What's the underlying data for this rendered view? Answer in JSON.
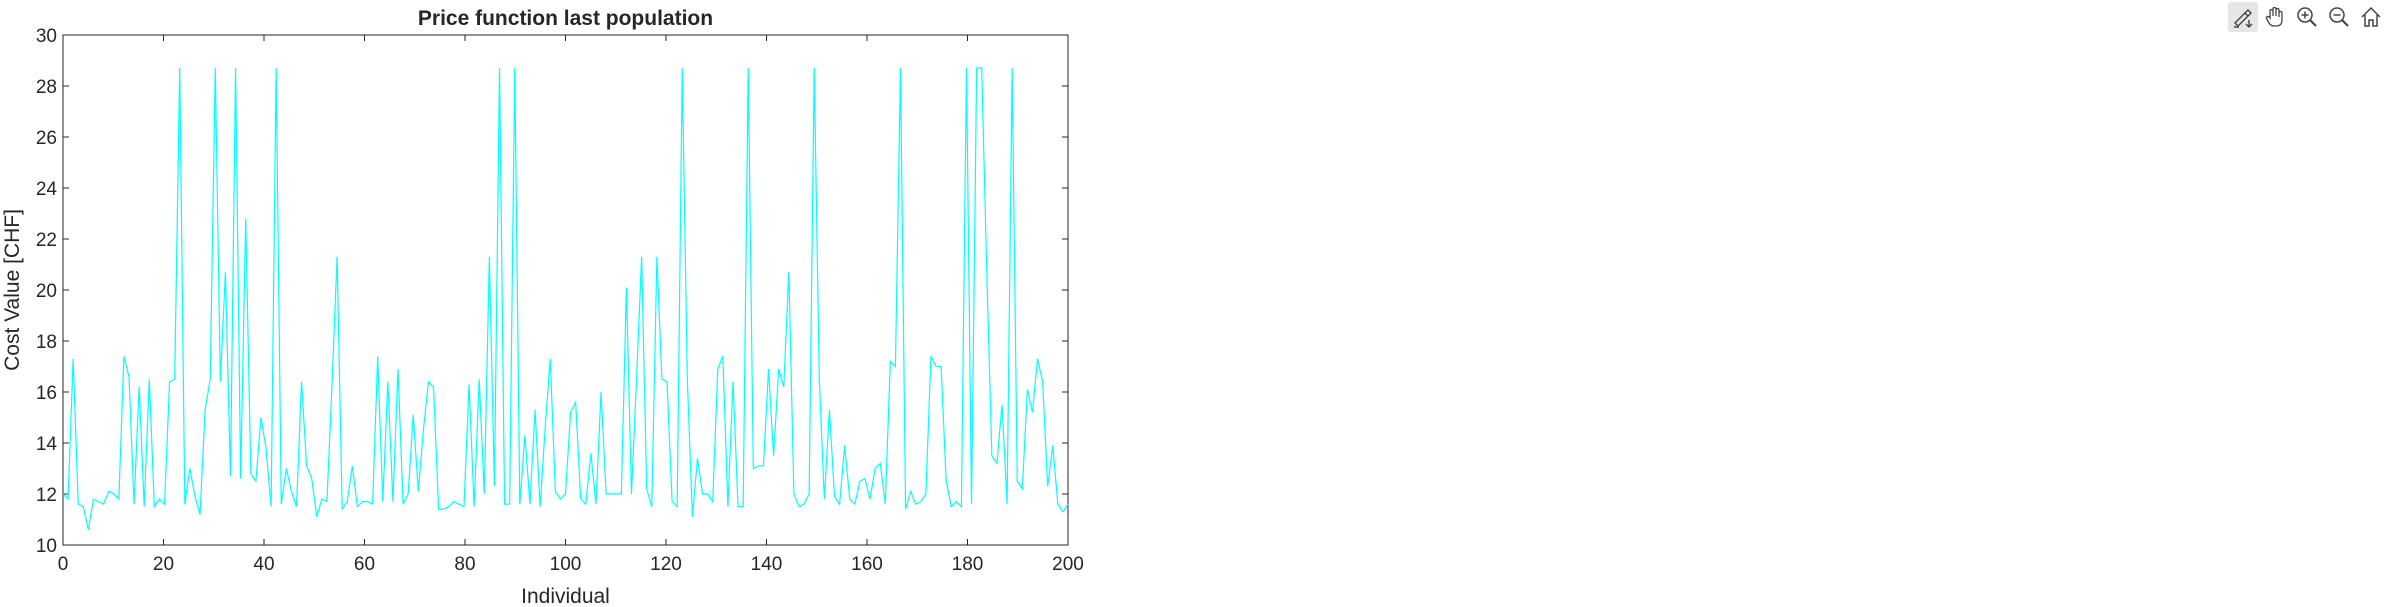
{
  "toolbar": {
    "buttons": [
      {
        "icon": "brush-export-icon",
        "name": "export-button"
      },
      {
        "icon": "pan-hand-icon",
        "name": "pan-button"
      },
      {
        "icon": "zoom-in-icon",
        "name": "zoom-in-button"
      },
      {
        "icon": "zoom-out-icon",
        "name": "zoom-out-button"
      },
      {
        "icon": "home-icon",
        "name": "restore-view-button"
      }
    ]
  },
  "chart_data": {
    "type": "line",
    "title": "Price function last population",
    "xlabel": "Individual",
    "ylabel": "Cost Value [CHF]",
    "xlim": [
      0,
      200
    ],
    "ylim": [
      10,
      30
    ],
    "xticks": [
      0,
      20,
      40,
      60,
      80,
      100,
      120,
      140,
      160,
      180,
      200
    ],
    "yticks": [
      10,
      12,
      14,
      16,
      18,
      20,
      22,
      24,
      26,
      28,
      30
    ],
    "grid": false,
    "color": "#00FFFF",
    "series": [
      {
        "values": [
          12.0,
          11.8,
          17.3,
          11.6,
          11.5,
          10.6,
          11.8,
          11.7,
          11.6,
          12.1,
          12.0,
          11.8,
          17.4,
          16.6,
          11.6,
          16.2,
          11.5,
          16.5,
          11.5,
          11.8,
          11.6,
          16.4,
          16.5,
          28.7,
          11.6,
          13.0,
          11.9,
          11.2,
          15.3,
          16.5,
          28.7,
          16.4,
          20.7,
          12.7,
          28.7,
          12.6,
          22.8,
          12.8,
          12.5,
          15.0,
          13.8,
          11.5,
          28.7,
          11.6,
          13.0,
          12.1,
          11.5,
          16.4,
          13.1,
          12.6,
          11.1,
          11.8,
          11.7,
          16.3,
          21.3,
          11.4,
          11.7,
          13.1,
          11.5,
          11.7,
          11.7,
          11.6,
          17.4,
          11.7,
          16.4,
          11.7,
          16.9,
          11.6,
          12.0,
          15.1,
          12.1,
          14.5,
          16.4,
          16.2,
          11.4,
          11.4,
          11.5,
          11.7,
          11.6,
          11.5,
          16.3,
          11.5,
          16.5,
          12.0,
          21.3,
          12.3,
          28.7,
          11.6,
          11.6,
          28.7,
          11.6,
          14.3,
          11.6,
          15.3,
          11.5,
          14.6,
          17.3,
          12.1,
          11.8,
          12.0,
          15.2,
          15.6,
          11.8,
          11.6,
          13.6,
          11.6,
          16.0,
          12.0,
          12.0,
          12.0,
          12.0,
          20.1,
          12.0,
          16.5,
          21.3,
          12.2,
          11.5,
          21.3,
          16.5,
          16.4,
          11.7,
          11.5,
          28.7,
          16.5,
          11.1,
          13.4,
          12.0,
          12.0,
          11.7,
          16.9,
          17.4,
          11.5,
          16.4,
          11.5,
          11.5,
          28.7,
          13.0,
          13.1,
          13.1,
          16.9,
          13.5,
          16.9,
          16.2,
          20.7,
          12.0,
          11.5,
          11.6,
          12.0,
          28.7,
          16.5,
          11.8,
          15.3,
          11.9,
          11.6,
          13.9,
          11.8,
          11.6,
          12.5,
          12.6,
          11.8,
          13.0,
          13.2,
          11.6,
          17.2,
          17.0,
          28.7,
          11.4,
          12.1,
          11.6,
          11.7,
          12.0,
          17.4,
          17.0,
          17.0,
          12.5,
          11.5,
          11.7,
          11.5,
          28.7,
          11.6,
          28.7,
          28.7,
          20.7,
          13.5,
          13.2,
          15.5,
          11.6,
          28.7,
          12.5,
          12.2,
          16.1,
          15.2,
          17.3,
          16.4,
          12.3,
          13.9,
          11.6,
          11.3,
          11.6
        ]
      }
    ]
  }
}
